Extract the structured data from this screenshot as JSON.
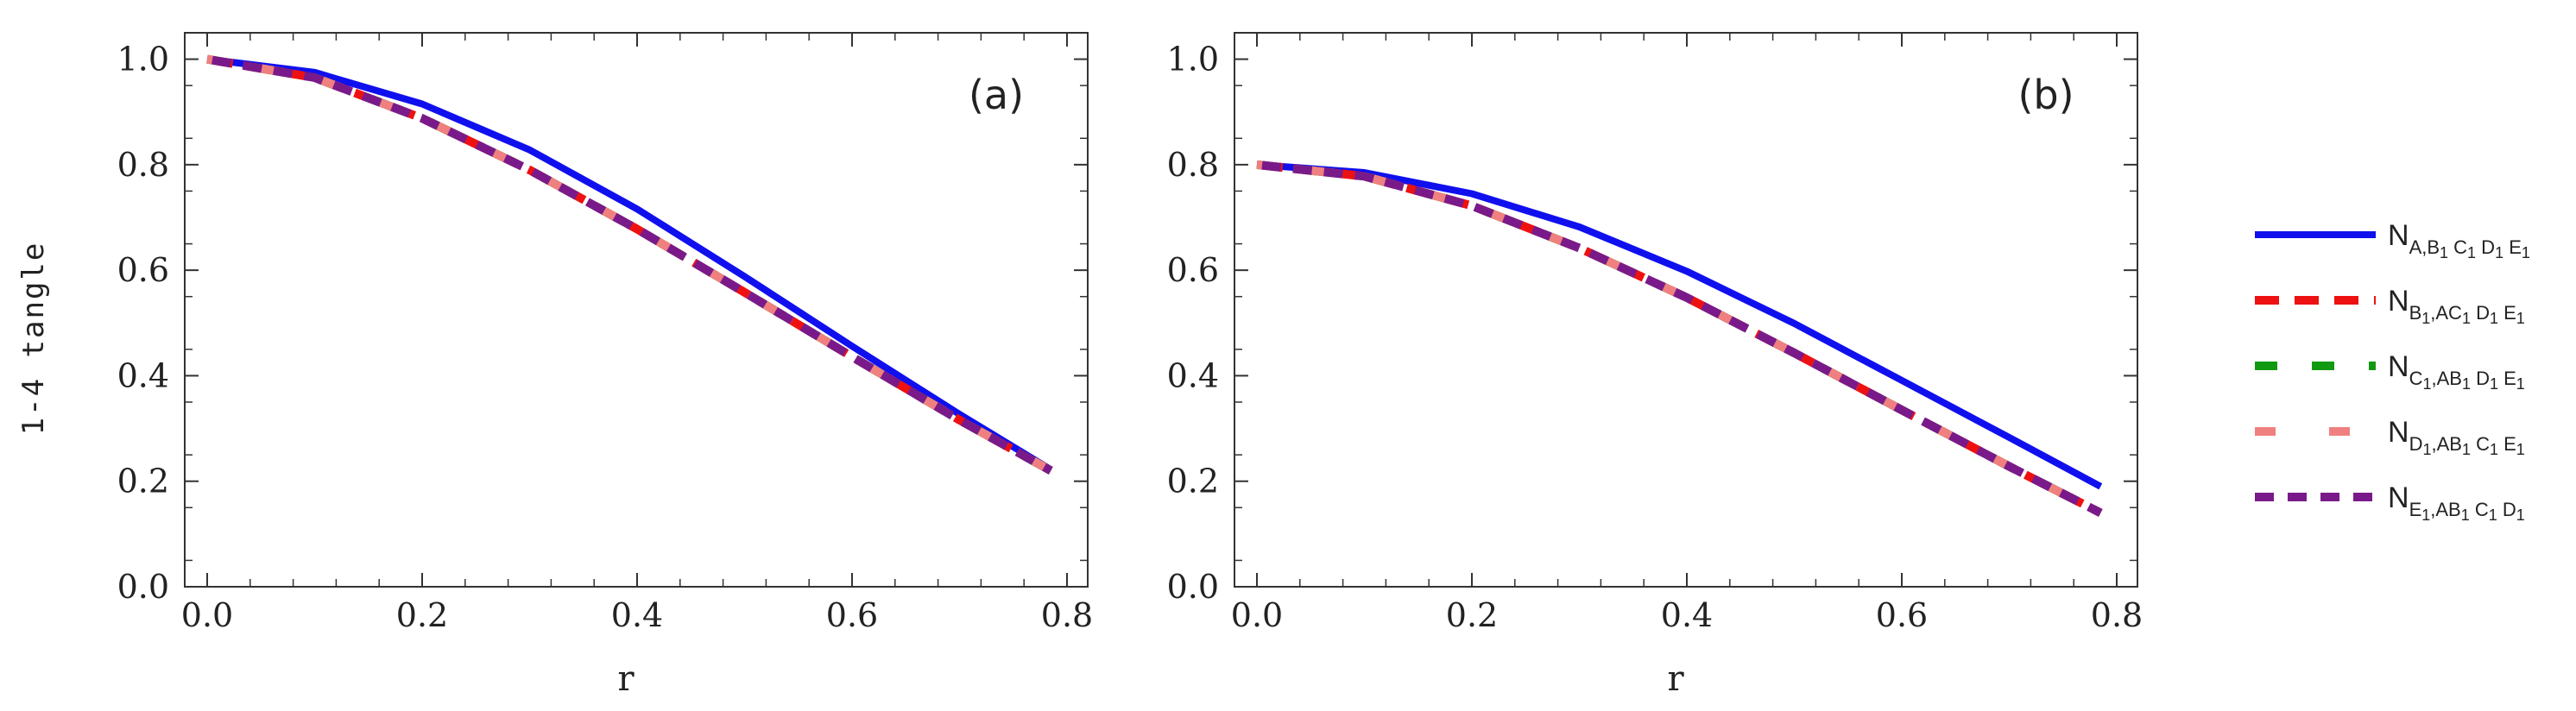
{
  "chart_data": [
    {
      "type": "line",
      "panel_label": "(a)",
      "xlabel": "r",
      "ylabel": "1-4 tangle",
      "xlim": [
        0,
        0.8
      ],
      "ylim": [
        0,
        1.05
      ],
      "xticks": [
        "0.0",
        "0.2",
        "0.4",
        "0.6",
        "0.8"
      ],
      "yticks": [
        "0.0",
        "0.2",
        "0.4",
        "0.6",
        "0.8",
        "1.0"
      ],
      "x": [
        0.0,
        0.1,
        0.2,
        0.3,
        0.4,
        0.5,
        0.6,
        0.7,
        0.785
      ],
      "series": [
        {
          "name": "N_{A,B1C1D1E1}",
          "color": "#1010ee",
          "style": "solid",
          "values": [
            1.0,
            0.975,
            0.915,
            0.828,
            0.716,
            0.588,
            0.456,
            0.327,
            0.222
          ]
        },
        {
          "name": "N_{B1,AC1D1E1}",
          "color": "#ee1111",
          "style": "dashed",
          "values": [
            1.0,
            0.965,
            0.888,
            0.79,
            0.678,
            0.558,
            0.436,
            0.316,
            0.22
          ]
        },
        {
          "name": "N_{C1,AB1D1E1}",
          "color": "#119911",
          "style": "dashed",
          "values": [
            1.0,
            0.965,
            0.888,
            0.79,
            0.678,
            0.558,
            0.436,
            0.316,
            0.22
          ]
        },
        {
          "name": "N_{D1,AB1C1E1}",
          "color": "#f08080",
          "style": "dashed",
          "values": [
            1.0,
            0.965,
            0.888,
            0.79,
            0.678,
            0.558,
            0.436,
            0.316,
            0.22
          ]
        },
        {
          "name": "N_{E1,AB1C1D1}",
          "color": "#7a1a8a",
          "style": "dashed",
          "values": [
            1.0,
            0.965,
            0.888,
            0.79,
            0.678,
            0.558,
            0.436,
            0.316,
            0.22
          ]
        }
      ]
    },
    {
      "type": "line",
      "panel_label": "(b)",
      "xlabel": "r",
      "ylabel": "",
      "xlim": [
        0,
        0.8
      ],
      "ylim": [
        0,
        1.05
      ],
      "xticks": [
        "0.0",
        "0.2",
        "0.4",
        "0.6",
        "0.8"
      ],
      "yticks": [
        "0.0",
        "0.2",
        "0.4",
        "0.6",
        "0.8",
        "1.0"
      ],
      "x": [
        0.0,
        0.1,
        0.2,
        0.3,
        0.4,
        0.5,
        0.6,
        0.7,
        0.785
      ],
      "series": [
        {
          "name": "N_{A,B1C1D1E1}",
          "color": "#1010ee",
          "style": "solid",
          "values": [
            0.8,
            0.785,
            0.745,
            0.682,
            0.598,
            0.499,
            0.391,
            0.283,
            0.19
          ]
        },
        {
          "name": "N_{B1,AC1D1E1}",
          "color": "#ee1111",
          "style": "dashed",
          "values": [
            0.8,
            0.778,
            0.722,
            0.642,
            0.548,
            0.443,
            0.335,
            0.228,
            0.14
          ]
        },
        {
          "name": "N_{C1,AB1D1E1}",
          "color": "#119911",
          "style": "dashed",
          "values": [
            0.8,
            0.778,
            0.722,
            0.642,
            0.548,
            0.443,
            0.335,
            0.228,
            0.14
          ]
        },
        {
          "name": "N_{D1,AB1C1E1}",
          "color": "#f08080",
          "style": "dashed",
          "values": [
            0.8,
            0.778,
            0.722,
            0.642,
            0.548,
            0.443,
            0.335,
            0.228,
            0.14
          ]
        },
        {
          "name": "N_{E1,AB1C1D1}",
          "color": "#7a1a8a",
          "style": "dashed",
          "values": [
            0.8,
            0.778,
            0.722,
            0.642,
            0.548,
            0.443,
            0.335,
            0.228,
            0.14
          ]
        }
      ]
    }
  ],
  "legend": {
    "placement": "right",
    "entries": [
      {
        "main": "N",
        "sub": "A,B",
        "sub2": "1",
        "sub3": " C",
        "sub4": "1",
        "sub5": " D",
        "sub6": "1",
        "sub7": " E",
        "sub8": "1"
      },
      {
        "main": "N",
        "sub": "B",
        "sub2": "1",
        "sub3": ",AC",
        "sub4": "1",
        "sub5": " D",
        "sub6": "1",
        "sub7": " E",
        "sub8": "1"
      },
      {
        "main": "N",
        "sub": "C",
        "sub2": "1",
        "sub3": ",AB",
        "sub4": "1",
        "sub5": " D",
        "sub6": "1",
        "sub7": " E",
        "sub8": "1"
      },
      {
        "main": "N",
        "sub": "D",
        "sub2": "1",
        "sub3": ",AB",
        "sub4": "1",
        "sub5": " C",
        "sub6": "1",
        "sub7": " E",
        "sub8": "1"
      },
      {
        "main": "N",
        "sub": "E",
        "sub2": "1",
        "sub3": ",AB",
        "sub4": "1",
        "sub5": " C",
        "sub6": "1",
        "sub7": " D",
        "sub8": "1"
      }
    ]
  }
}
